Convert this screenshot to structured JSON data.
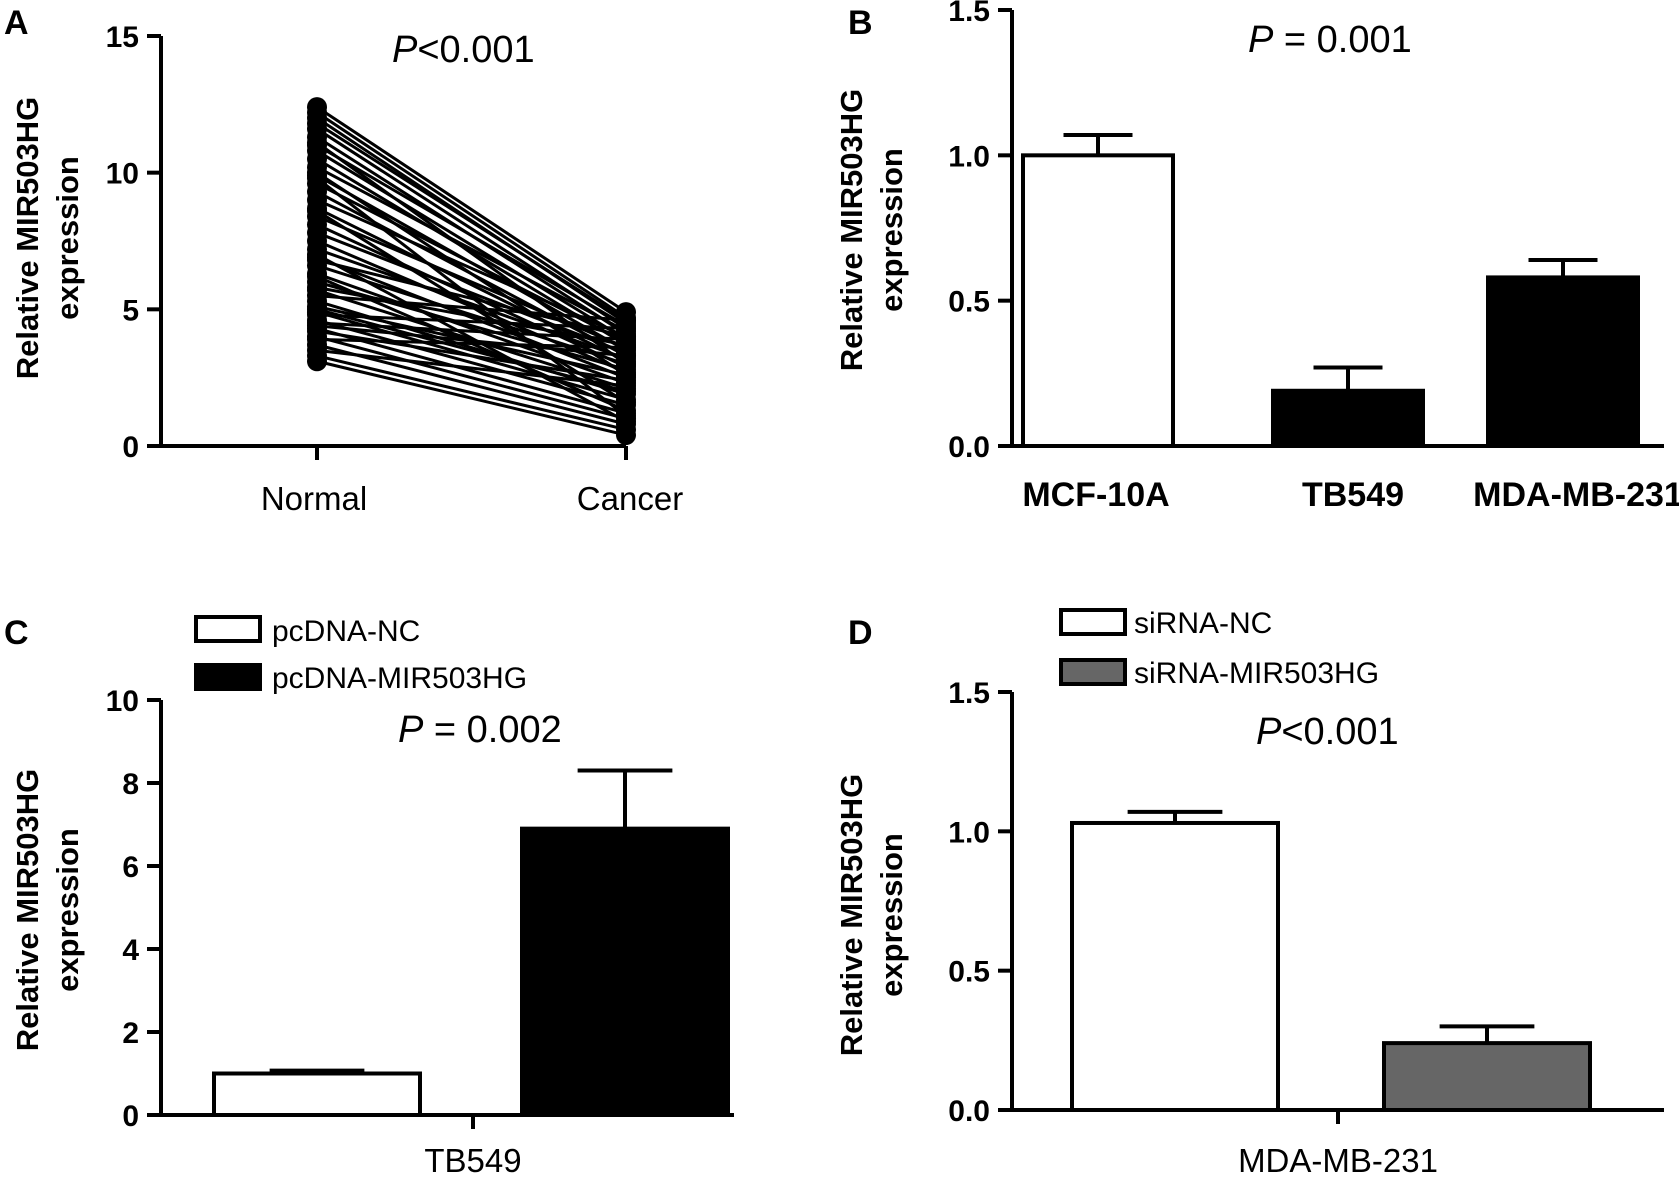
{
  "chart_data": [
    {
      "panel": "A",
      "type": "line",
      "annotation": {
        "italic": "P",
        "text": "<0.001"
      },
      "ylabel": [
        "Relative MIR503HG",
        "expression"
      ],
      "ylim": [
        0,
        15
      ],
      "yticks": [
        "0",
        "5",
        "10",
        "15"
      ],
      "categories": [
        "Normal",
        "Cancer"
      ],
      "pairs": [
        [
          12.4,
          4.9
        ],
        [
          12.2,
          4.7
        ],
        [
          12.0,
          4.5
        ],
        [
          11.8,
          4.6
        ],
        [
          11.6,
          4.3
        ],
        [
          11.3,
          4.1
        ],
        [
          11.0,
          4.4
        ],
        [
          10.8,
          3.9
        ],
        [
          10.5,
          3.7
        ],
        [
          10.2,
          4.2
        ],
        [
          9.9,
          3.5
        ],
        [
          9.6,
          3.8
        ],
        [
          9.3,
          3.3
        ],
        [
          9.0,
          4.0
        ],
        [
          8.7,
          3.1
        ],
        [
          8.4,
          3.6
        ],
        [
          8.1,
          2.9
        ],
        [
          7.8,
          3.4
        ],
        [
          7.5,
          2.7
        ],
        [
          7.2,
          3.2
        ],
        [
          6.9,
          2.5
        ],
        [
          6.6,
          3.0
        ],
        [
          6.3,
          2.3
        ],
        [
          6.0,
          2.8
        ],
        [
          5.7,
          2.1
        ],
        [
          5.5,
          4.6
        ],
        [
          5.3,
          1.9
        ],
        [
          5.1,
          2.6
        ],
        [
          4.9,
          1.7
        ],
        [
          4.8,
          4.3
        ],
        [
          4.6,
          1.5
        ],
        [
          4.5,
          3.9
        ],
        [
          4.3,
          1.2
        ],
        [
          4.2,
          2.4
        ],
        [
          4.0,
          1.0
        ],
        [
          3.9,
          3.6
        ],
        [
          3.7,
          0.8
        ],
        [
          3.5,
          2.2
        ],
        [
          3.3,
          0.6
        ],
        [
          3.1,
          0.4
        ],
        [
          5.0,
          2.0
        ],
        [
          6.2,
          1.3
        ],
        [
          7.0,
          0.9
        ],
        [
          8.6,
          1.6
        ],
        [
          9.8,
          1.1
        ],
        [
          5.8,
          3.7
        ],
        [
          4.4,
          3.3
        ],
        [
          10.0,
          2.6
        ],
        [
          11.1,
          3.0
        ],
        [
          6.8,
          4.0
        ]
      ]
    },
    {
      "panel": "B",
      "type": "bar",
      "annotation": {
        "italic": "P",
        "text": " = 0.001"
      },
      "ylabel": [
        "Relative MIR503HG",
        "expression"
      ],
      "ylim": [
        0,
        1.5
      ],
      "yticks": [
        "0.0",
        "0.5",
        "1.0",
        "1.5"
      ],
      "categories": [
        "MCF-10A",
        "TB549",
        "MDA-MB-231"
      ],
      "values": [
        1.0,
        0.19,
        0.58
      ],
      "errors": [
        0.07,
        0.08,
        0.06
      ],
      "colors": [
        "#ffffff",
        "#000000",
        "#000000"
      ]
    },
    {
      "panel": "C",
      "type": "bar",
      "annotation": {
        "italic": "P",
        "text": " = 0.002"
      },
      "ylabel": [
        "Relative MIR503HG",
        "expression"
      ],
      "ylim": [
        0,
        10
      ],
      "yticks": [
        "0",
        "2",
        "4",
        "6",
        "8",
        "10"
      ],
      "xlabel": "TB549",
      "legend": [
        {
          "name": "pcDNA-NC",
          "color": "#ffffff"
        },
        {
          "name": "pcDNA-MIR503HG",
          "color": "#000000"
        }
      ],
      "series": [
        {
          "name": "pcDNA-NC",
          "value": 1.0,
          "error": 0.07
        },
        {
          "name": "pcDNA-MIR503HG",
          "value": 6.9,
          "error": 1.4
        }
      ]
    },
    {
      "panel": "D",
      "type": "bar",
      "annotation": {
        "italic": "P",
        "text": "<0.001"
      },
      "ylabel": [
        "Relative MIR503HG",
        "expression"
      ],
      "ylim": [
        0,
        1.5
      ],
      "yticks": [
        "0.0",
        "0.5",
        "1.0",
        "1.5"
      ],
      "xlabel": "MDA-MB-231",
      "legend": [
        {
          "name": "siRNA-NC",
          "color": "#ffffff"
        },
        {
          "name": "siRNA-MIR503HG",
          "color": "#666666"
        }
      ],
      "series": [
        {
          "name": "siRNA-NC",
          "value": 1.03,
          "error": 0.04
        },
        {
          "name": "siRNA-MIR503HG",
          "value": 0.24,
          "error": 0.06
        }
      ]
    }
  ]
}
